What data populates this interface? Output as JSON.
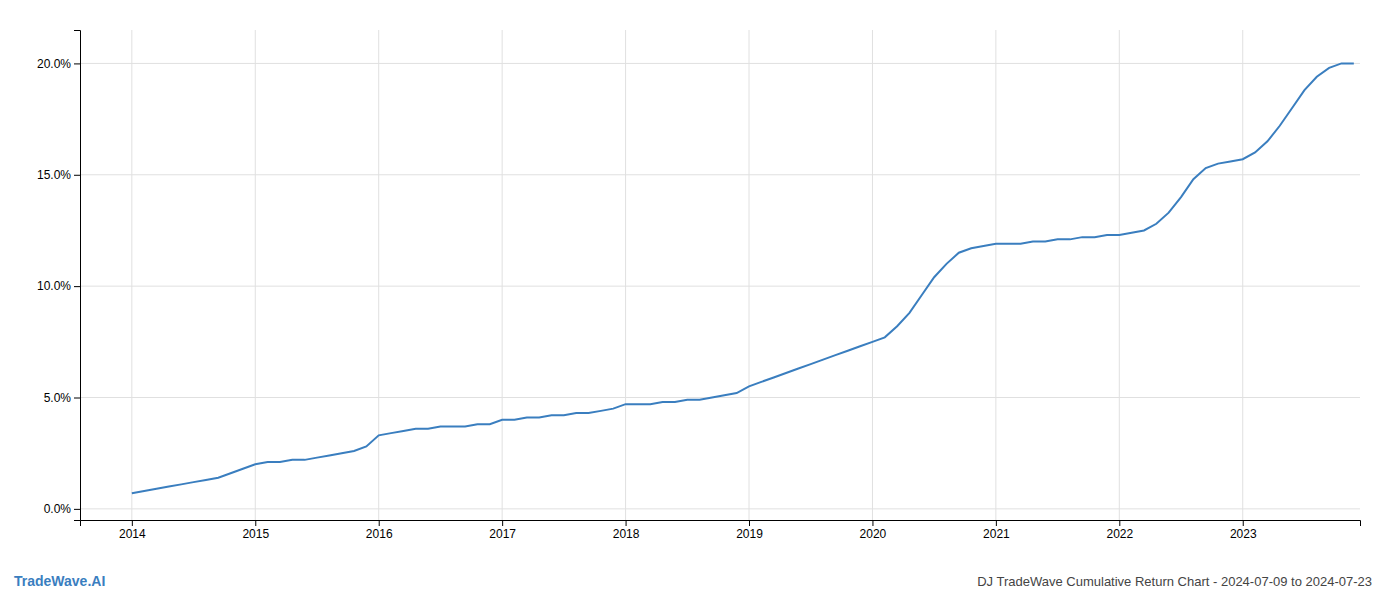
{
  "chart_data": {
    "type": "line",
    "title": "DJ TradeWave Cumulative Return Chart - 2024-07-09 to 2024-07-23",
    "annotations": [
      "TradeWave.AI"
    ],
    "color": "#3a7ebf",
    "grid": true,
    "x": [
      2014.0,
      2014.1,
      2014.2,
      2014.3,
      2014.4,
      2014.5,
      2014.6,
      2014.7,
      2014.8,
      2014.9,
      2015.0,
      2015.1,
      2015.2,
      2015.3,
      2015.4,
      2015.5,
      2015.6,
      2015.7,
      2015.8,
      2015.9,
      2016.0,
      2016.1,
      2016.2,
      2016.3,
      2016.4,
      2016.5,
      2016.6,
      2016.7,
      2016.8,
      2016.9,
      2017.0,
      2017.1,
      2017.2,
      2017.3,
      2017.4,
      2017.5,
      2017.6,
      2017.7,
      2017.8,
      2017.9,
      2018.0,
      2018.1,
      2018.2,
      2018.3,
      2018.4,
      2018.5,
      2018.6,
      2018.7,
      2018.8,
      2018.9,
      2019.0,
      2019.1,
      2019.2,
      2019.3,
      2019.4,
      2019.5,
      2019.6,
      2019.7,
      2019.8,
      2019.9,
      2020.0,
      2020.1,
      2020.2,
      2020.3,
      2020.4,
      2020.5,
      2020.6,
      2020.7,
      2020.8,
      2020.9,
      2021.0,
      2021.1,
      2021.2,
      2021.3,
      2021.4,
      2021.5,
      2021.6,
      2021.7,
      2021.8,
      2021.9,
      2022.0,
      2022.1,
      2022.2,
      2022.3,
      2022.4,
      2022.5,
      2022.6,
      2022.7,
      2022.8,
      2022.9,
      2023.0,
      2023.1,
      2023.2,
      2023.3,
      2023.4,
      2023.5,
      2023.6,
      2023.7,
      2023.8,
      2023.9
    ],
    "values": [
      0.007,
      0.008,
      0.009,
      0.01,
      0.011,
      0.012,
      0.013,
      0.014,
      0.016,
      0.018,
      0.02,
      0.021,
      0.021,
      0.022,
      0.022,
      0.023,
      0.024,
      0.025,
      0.026,
      0.028,
      0.033,
      0.034,
      0.035,
      0.036,
      0.036,
      0.037,
      0.037,
      0.037,
      0.038,
      0.038,
      0.04,
      0.04,
      0.041,
      0.041,
      0.042,
      0.042,
      0.043,
      0.043,
      0.044,
      0.045,
      0.047,
      0.047,
      0.047,
      0.048,
      0.048,
      0.049,
      0.049,
      0.05,
      0.051,
      0.052,
      0.055,
      0.057,
      0.059,
      0.061,
      0.063,
      0.065,
      0.067,
      0.069,
      0.071,
      0.073,
      0.075,
      0.077,
      0.082,
      0.088,
      0.096,
      0.104,
      0.11,
      0.115,
      0.117,
      0.118,
      0.119,
      0.119,
      0.119,
      0.12,
      0.12,
      0.121,
      0.121,
      0.122,
      0.122,
      0.123,
      0.123,
      0.124,
      0.125,
      0.128,
      0.133,
      0.14,
      0.148,
      0.153,
      0.155,
      0.156,
      0.157,
      0.16,
      0.165,
      0.172,
      0.18,
      0.188,
      0.194,
      0.198,
      0.2,
      0.2
    ],
    "xlim": [
      2013.58,
      2023.95
    ],
    "xticks": [
      2014,
      2015,
      2016,
      2017,
      2018,
      2019,
      2020,
      2021,
      2022,
      2023
    ],
    "ylim": [
      -0.005,
      0.215
    ],
    "yticks": [
      {
        "value": 0.0,
        "label": "0.0%"
      },
      {
        "value": 0.05,
        "label": "5.0%"
      },
      {
        "value": 0.1,
        "label": "10.0%"
      },
      {
        "value": 0.15,
        "label": "15.0%"
      },
      {
        "value": 0.2,
        "label": "20.0%"
      }
    ]
  }
}
